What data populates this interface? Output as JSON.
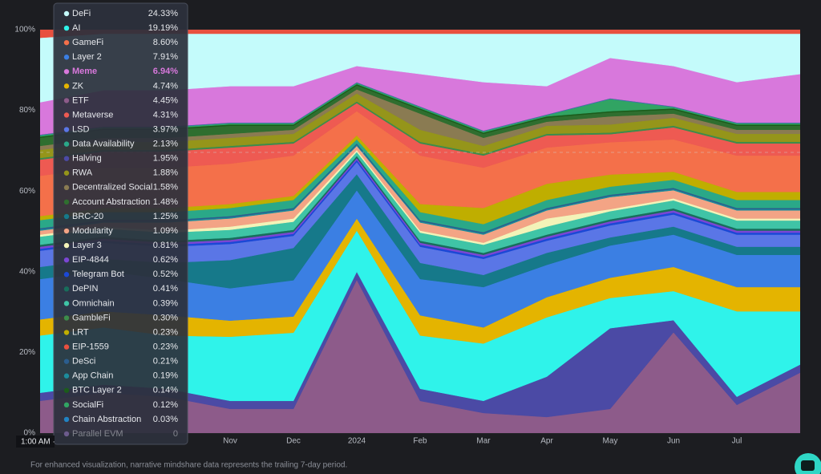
{
  "chart_data": {
    "type": "stacked_area_100",
    "categories": [
      null,
      null,
      null,
      "Nov",
      "Dec",
      "2024",
      "Feb",
      "Mar",
      "Apr",
      "May",
      "Jun",
      "Jul",
      null
    ],
    "ylim": [
      0,
      100
    ],
    "yticks": [
      {
        "value": 0,
        "label": "0%"
      },
      {
        "value": 20,
        "label": "20%"
      },
      {
        "value": 40,
        "label": "40%"
      },
      {
        "value": 60,
        "label": "60%"
      },
      {
        "value": 80,
        "label": "80%"
      },
      {
        "value": 100,
        "label": "100%"
      }
    ],
    "grid": true,
    "series": [
      {
        "name": "ETF",
        "color": "#8d5b8a",
        "values": [
          8,
          10,
          9,
          6,
          6,
          38,
          8,
          5,
          4,
          6,
          25,
          7,
          15
        ]
      },
      {
        "name": "Halving",
        "color": "#4b4aa5",
        "values": [
          2,
          2,
          2,
          2,
          2,
          2,
          3,
          3,
          10,
          20,
          3,
          2,
          2
        ]
      },
      {
        "name": "AI",
        "color": "#2ff3ea",
        "values": [
          14.2,
          14.2,
          13.2,
          15.9,
          16.9,
          10.2,
          13.2,
          14.2,
          14.7,
          7.5,
          7.2,
          21.2,
          13.2
        ]
      },
      {
        "name": "ZK",
        "color": "#e4b400",
        "values": [
          4,
          4,
          5,
          4,
          4,
          3,
          5,
          4,
          5,
          5,
          6,
          6,
          6
        ]
      },
      {
        "name": "Layer 2",
        "color": "#3b7fe3",
        "values": [
          10,
          10,
          9,
          8,
          9,
          7,
          9,
          10,
          8,
          8,
          8,
          8,
          8
        ]
      },
      {
        "name": "BRC-20",
        "color": "#16798a",
        "values": [
          3,
          3,
          4,
          7,
          8,
          4,
          4,
          3,
          3,
          2,
          2,
          2,
          2
        ]
      },
      {
        "name": "LSD",
        "color": "#5a76e6",
        "values": [
          4,
          4,
          4,
          4,
          3,
          3,
          4,
          4,
          3,
          3,
          3,
          3,
          3
        ]
      },
      {
        "name": "Telegram Bot",
        "color": "#1b48d6",
        "values": [
          0.5,
          0.5,
          0.5,
          0.5,
          0.5,
          0.5,
          0.5,
          0.5,
          0.5,
          0.5,
          0.5,
          0.5,
          0.5
        ]
      },
      {
        "name": "EIP-4844",
        "color": "#7b46d4",
        "values": [
          0.5,
          0.5,
          0.5,
          0.5,
          0.5,
          0.5,
          0.5,
          0.5,
          0.5,
          0.5,
          0.5,
          0.5,
          0.5
        ]
      },
      {
        "name": "DePIN",
        "color": "#186e5c",
        "values": [
          0.5,
          0.5,
          0.5,
          0.5,
          0.5,
          0.5,
          0.5,
          0.5,
          0.5,
          0.5,
          0.5,
          0.5,
          0.5
        ]
      },
      {
        "name": "Omnichain",
        "color": "#3fc4a6",
        "values": [
          2,
          2,
          2,
          2,
          2,
          1,
          2,
          2,
          2,
          2,
          2,
          2,
          2
        ]
      },
      {
        "name": "Layer 3",
        "color": "#f3f3b8",
        "values": [
          0.5,
          0.5,
          0.5,
          0.8,
          0.8,
          0.5,
          0.5,
          0.5,
          2,
          0.5,
          0.5,
          0.5,
          0.5
        ]
      },
      {
        "name": "Modularity",
        "color": "#f3a485",
        "values": [
          1,
          1,
          2,
          2,
          2,
          1,
          2,
          2,
          2,
          3,
          2,
          2,
          2
        ]
      },
      {
        "name": "App Chain",
        "color": "#1c8c9c",
        "values": [
          0.3,
          0.3,
          0.3,
          0.3,
          0.3,
          0.3,
          0.3,
          0.3,
          0.3,
          0.3,
          0.3,
          0.3,
          0.3
        ]
      },
      {
        "name": "DeSci",
        "color": "#2b5d8e",
        "values": [
          0.3,
          0.3,
          0.3,
          0.3,
          0.3,
          0.3,
          0.3,
          0.3,
          0.3,
          0.3,
          0.3,
          0.3,
          0.3
        ]
      },
      {
        "name": "Data Availability",
        "color": "#2aa888",
        "values": [
          2,
          2,
          2,
          2,
          2,
          1,
          2,
          2,
          2,
          2,
          2,
          2,
          2
        ]
      },
      {
        "name": "LRT",
        "color": "#bfae00",
        "values": [
          1,
          1,
          1,
          1,
          1,
          1,
          2,
          4,
          4,
          3,
          2,
          2,
          2
        ]
      },
      {
        "name": "GameFi",
        "color": "#f4704a",
        "values": [
          10,
          10,
          10,
          10,
          10,
          6,
          12,
          10,
          9,
          8,
          8,
          9,
          9
        ]
      },
      {
        "name": "Metaverse",
        "color": "#ee5a52",
        "values": [
          4,
          4,
          4,
          4,
          3,
          2,
          3,
          3,
          3,
          2,
          3,
          3,
          3
        ]
      },
      {
        "name": "GambleFi",
        "color": "#3c8c4c",
        "values": [
          0.4,
          0.4,
          0.4,
          0.4,
          0.4,
          0.4,
          0.4,
          0.4,
          0.4,
          0.4,
          0.4,
          0.4,
          0.4
        ]
      },
      {
        "name": "RWA",
        "color": "#95951a",
        "values": [
          2,
          2,
          2,
          2,
          2,
          2,
          3,
          2,
          2,
          2,
          2,
          2,
          2
        ]
      },
      {
        "name": "Decentralized Social",
        "color": "#8a7b52",
        "values": [
          1,
          1,
          1,
          1,
          1,
          1,
          4,
          2,
          1,
          2,
          1,
          1,
          1
        ]
      },
      {
        "name": "Account Abstraction",
        "color": "#2f6e2f",
        "values": [
          2,
          2,
          2,
          2,
          1,
          1,
          1,
          1,
          1,
          1,
          1,
          1,
          1
        ]
      },
      {
        "name": "BTC Layer 2",
        "color": "#1b5c1b",
        "values": [
          0.3,
          0.3,
          0.3,
          0.3,
          0.3,
          0.3,
          0.3,
          0.3,
          0.3,
          0.3,
          0.3,
          0.3,
          0.3
        ]
      },
      {
        "name": "SocialFi",
        "color": "#31a463",
        "values": [
          0.3,
          0.3,
          0.3,
          0.3,
          0.3,
          0.3,
          0.3,
          0.3,
          0.3,
          3,
          0.3,
          0.3,
          0.3
        ]
      },
      {
        "name": "Chain Abstraction",
        "color": "#2183c4",
        "values": [
          0.1,
          0.1,
          0.1,
          0.1,
          0.1,
          0.1,
          0.1,
          0.1,
          0.1,
          0.1,
          0.1,
          0.1,
          0.1
        ]
      },
      {
        "name": "Parallel EVM",
        "color": "#6c5b8c",
        "values": [
          0.1,
          0.1,
          0.1,
          0.1,
          0.1,
          0.1,
          0.1,
          0.1,
          0.1,
          0.1,
          0.1,
          0.1,
          0.1
        ]
      },
      {
        "name": "Meme",
        "color": "#d878dc",
        "values": [
          8,
          9,
          9,
          9,
          9,
          4,
          8,
          12,
          7,
          10,
          10,
          10,
          12
        ]
      },
      {
        "name": "DeFi",
        "color": "#c4fbfb",
        "values": [
          16,
          14,
          14,
          13,
          13,
          8,
          10,
          12,
          13,
          6,
          8,
          12,
          10
        ]
      },
      {
        "name": "EIP-1559",
        "color": "#e8503f",
        "values": [
          2,
          1,
          1,
          1,
          1,
          1,
          1,
          1,
          1,
          1,
          1,
          1,
          1
        ]
      }
    ],
    "hover_label": "1:00 AM ·",
    "footnote": "For enhanced visualization, narrative mindshare data represents the trailing 7-day period.",
    "tooltip": {
      "highlighted_row": "Meme",
      "rows": [
        {
          "name": "DeFi",
          "value": "24.33%"
        },
        {
          "name": "AI",
          "value": "19.19%"
        },
        {
          "name": "GameFi",
          "value": "8.60%"
        },
        {
          "name": "Layer 2",
          "value": "7.91%"
        },
        {
          "name": "Meme",
          "value": "6.94%"
        },
        {
          "name": "ZK",
          "value": "4.74%"
        },
        {
          "name": "ETF",
          "value": "4.45%"
        },
        {
          "name": "Metaverse",
          "value": "4.31%"
        },
        {
          "name": "LSD",
          "value": "3.97%"
        },
        {
          "name": "Data Availability",
          "value": "2.13%"
        },
        {
          "name": "Halving",
          "value": "1.95%"
        },
        {
          "name": "RWA",
          "value": "1.88%"
        },
        {
          "name": "Decentralized Social",
          "value": "1.58%"
        },
        {
          "name": "Account Abstraction",
          "value": "1.48%"
        },
        {
          "name": "BRC-20",
          "value": "1.25%"
        },
        {
          "name": "Modularity",
          "value": "1.09%"
        },
        {
          "name": "Layer 3",
          "value": "0.81%"
        },
        {
          "name": "EIP-4844",
          "value": "0.62%"
        },
        {
          "name": "Telegram Bot",
          "value": "0.52%"
        },
        {
          "name": "DePIN",
          "value": "0.41%"
        },
        {
          "name": "Omnichain",
          "value": "0.39%"
        },
        {
          "name": "GambleFi",
          "value": "0.30%"
        },
        {
          "name": "LRT",
          "value": "0.23%"
        },
        {
          "name": "EIP-1559",
          "value": "0.23%"
        },
        {
          "name": "DeSci",
          "value": "0.21%"
        },
        {
          "name": "App Chain",
          "value": "0.19%"
        },
        {
          "name": "BTC Layer 2",
          "value": "0.14%"
        },
        {
          "name": "SocialFi",
          "value": "0.12%"
        },
        {
          "name": "Chain Abstraction",
          "value": "0.03%"
        },
        {
          "name": "Parallel EVM",
          "value": "0"
        }
      ]
    }
  }
}
